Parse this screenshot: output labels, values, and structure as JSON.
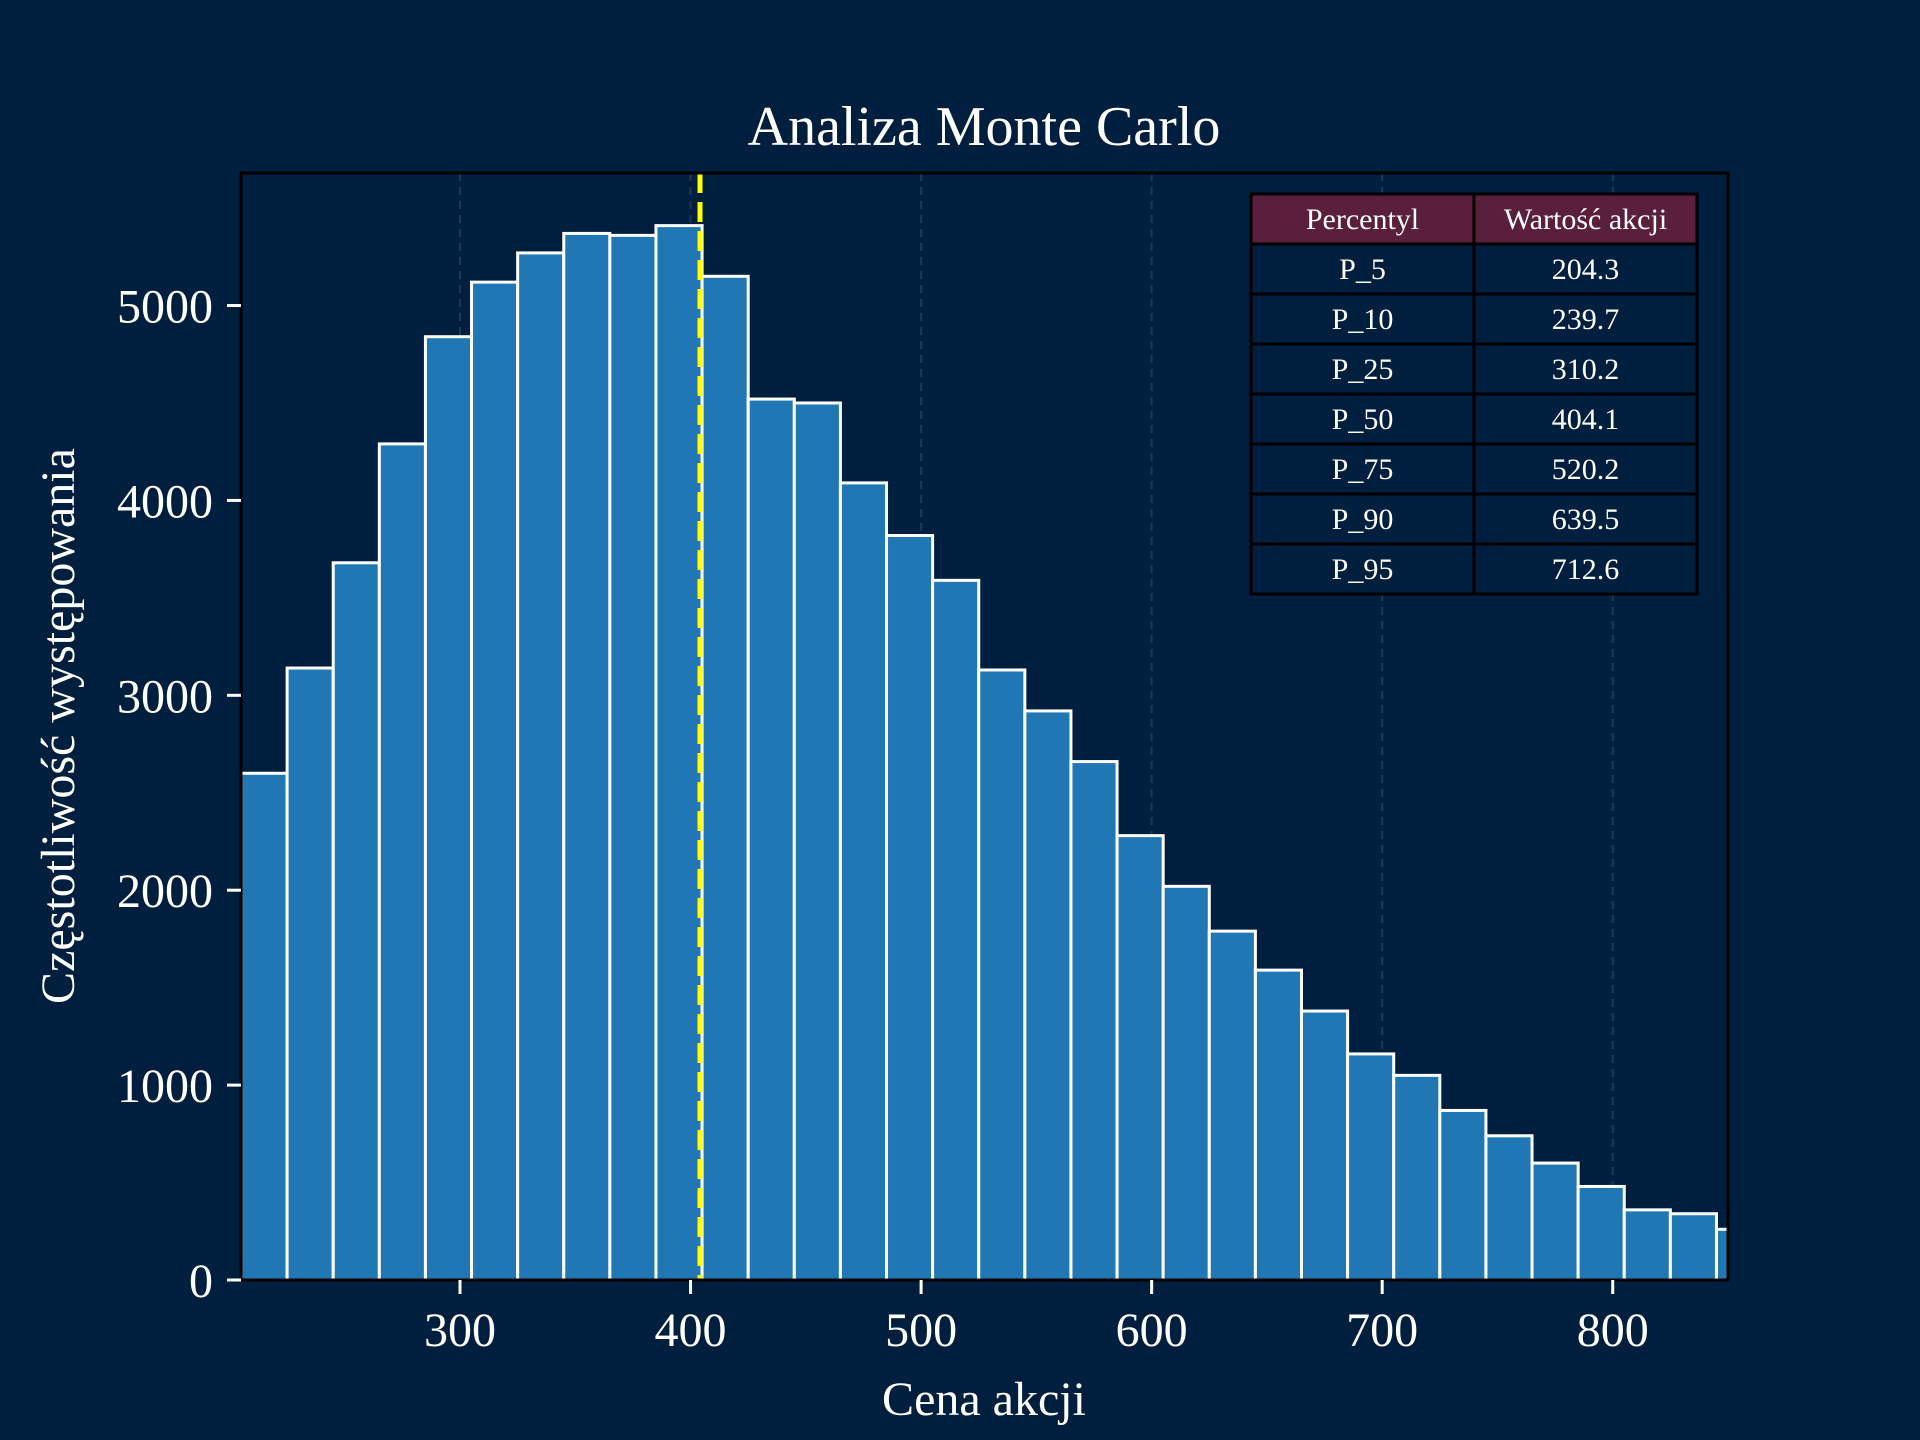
{
  "chart_data": {
    "type": "bar",
    "title": "Analiza Monte Carlo",
    "xlabel": "Cena akcji",
    "ylabel": "Częstotliwość występowania",
    "xlim": [
      205,
      850
    ],
    "ylim": [
      0,
      5680
    ],
    "xticks": [
      300,
      400,
      500,
      600,
      700,
      800
    ],
    "yticks": [
      0,
      1000,
      2000,
      3000,
      4000,
      5000
    ],
    "grid": "x-dashed",
    "bins": {
      "start": 205,
      "width": 20,
      "counts": [
        2600,
        3140,
        3680,
        4290,
        4840,
        5120,
        5270,
        5370,
        5360,
        5410,
        5150,
        4520,
        4500,
        4090,
        3820,
        3590,
        3130,
        2920,
        2660,
        2280,
        2020,
        1790,
        1590,
        1380,
        1160,
        1050,
        870,
        740,
        600,
        480,
        360,
        340,
        260
      ]
    },
    "median_line": {
      "value": 404.1,
      "color": "#ffff00",
      "style": "dashed"
    },
    "colors": {
      "background": "#001f3f",
      "bar_fill": "#2077b4",
      "bar_edge": "#ffffff",
      "table_header": "#5a1f3c"
    },
    "percentile_table": {
      "headers": [
        "Percentyl",
        "Wartość akcji"
      ],
      "rows": [
        [
          "P_5",
          "204.3"
        ],
        [
          "P_10",
          "239.7"
        ],
        [
          "P_25",
          "310.2"
        ],
        [
          "P_50",
          "404.1"
        ],
        [
          "P_75",
          "520.2"
        ],
        [
          "P_90",
          "639.5"
        ],
        [
          "P_95",
          "712.6"
        ]
      ]
    }
  }
}
